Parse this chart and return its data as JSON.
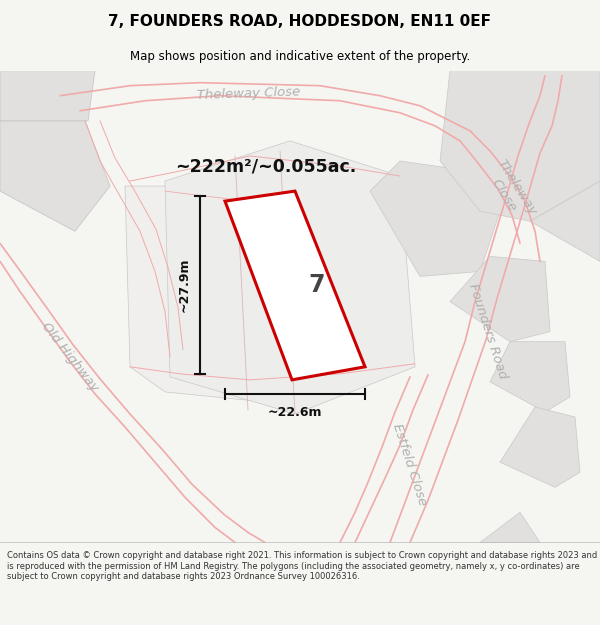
{
  "title": "7, FOUNDERS ROAD, HODDESDON, EN11 0EF",
  "subtitle": "Map shows position and indicative extent of the property.",
  "footer": "Contains OS data © Crown copyright and database right 2021. This information is subject to Crown copyright and database rights 2023 and is reproduced with the permission of HM Land Registry. The polygons (including the associated geometry, namely x, y co-ordinates) are subject to Crown copyright and database rights 2023 Ordnance Survey 100026316.",
  "area_label": "~222m²/~0.055ac.",
  "width_label": "~22.6m",
  "height_label": "~27.9m",
  "property_number": "7",
  "bg_color": "#f5f5f2",
  "map_bg": "#ffffff",
  "plot_outline_color": "#cc0000",
  "plot_fill": "#ffffff",
  "road_label_color": "#b0b0b0",
  "block_fill": "#e0dedd",
  "block_ec": "#cccccc",
  "road_line_color": "#f0b8b8",
  "dim_color": "#111111",
  "road_band_color": "#f7eded"
}
